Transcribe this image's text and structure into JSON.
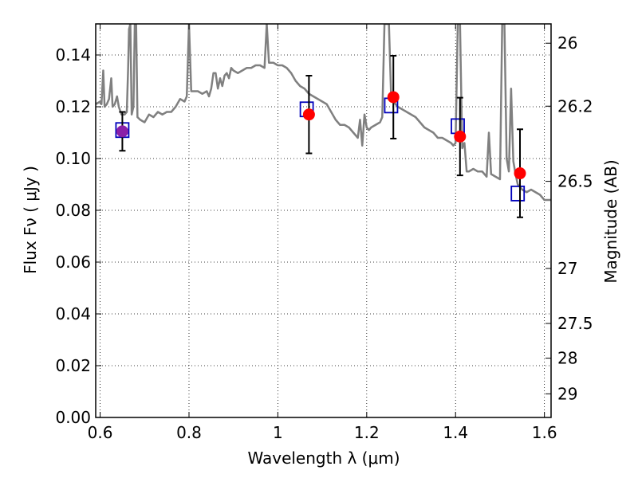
{
  "chart_data": {
    "type": "scatter",
    "title": "",
    "xlabel": "Wavelength  λ (μm)",
    "ylabel": "Flux  Fν  ( μJy )",
    "y2label": "Magnitude (AB)",
    "xlim": [
      0.59,
      1.615
    ],
    "ylim": [
      0.0,
      0.152
    ],
    "x_ticks": [
      0.6,
      0.8,
      1.0,
      1.2,
      1.4,
      1.6
    ],
    "x_tick_labels": [
      "0.6",
      "0.8",
      "1",
      "1.2",
      "1.4",
      "1.6"
    ],
    "y_ticks": [
      0.0,
      0.02,
      0.04,
      0.06,
      0.08,
      0.1,
      0.12,
      0.14
    ],
    "y_tick_labels": [
      "0.00",
      "0.02",
      "0.04",
      "0.06",
      "0.08",
      "0.10",
      "0.12",
      "0.14"
    ],
    "y2_ticks": [
      26,
      26.2,
      26.5,
      27,
      27.5,
      28,
      29
    ],
    "y2_tick_labels": [
      "26",
      "26.2",
      "26.5",
      "27",
      "27.5",
      "28",
      "29"
    ],
    "grid": true,
    "colors": {
      "spectrum": "#808080",
      "observed": "#ff0000",
      "model": "#0000bb",
      "errorbar": "#000000",
      "overlap": "#8a1fa8"
    },
    "series": [
      {
        "kind": "line",
        "points": [
          [
            0.59,
            0.121
          ],
          [
            0.6,
            0.122
          ],
          [
            0.603,
            0.121
          ],
          [
            0.607,
            0.134
          ],
          [
            0.61,
            0.12
          ],
          [
            0.615,
            0.121
          ],
          [
            0.62,
            0.123
          ],
          [
            0.625,
            0.131
          ],
          [
            0.628,
            0.12
          ],
          [
            0.633,
            0.121
          ],
          [
            0.638,
            0.124
          ],
          [
            0.642,
            0.12
          ],
          [
            0.648,
            0.117
          ],
          [
            0.655,
            0.117
          ],
          [
            0.66,
            0.118
          ],
          [
            0.663,
            0.135
          ],
          [
            0.665,
            0.15
          ],
          [
            0.668,
            0.152
          ],
          [
            0.671,
            0.117
          ],
          [
            0.675,
            0.12
          ],
          [
            0.678,
            0.152
          ],
          [
            0.681,
            0.152
          ],
          [
            0.684,
            0.116
          ],
          [
            0.69,
            0.115
          ],
          [
            0.7,
            0.114
          ],
          [
            0.71,
            0.117
          ],
          [
            0.72,
            0.116
          ],
          [
            0.73,
            0.118
          ],
          [
            0.74,
            0.117
          ],
          [
            0.75,
            0.118
          ],
          [
            0.76,
            0.118
          ],
          [
            0.77,
            0.12
          ],
          [
            0.78,
            0.123
          ],
          [
            0.79,
            0.122
          ],
          [
            0.795,
            0.124
          ],
          [
            0.8,
            0.152
          ],
          [
            0.805,
            0.126
          ],
          [
            0.82,
            0.126
          ],
          [
            0.83,
            0.125
          ],
          [
            0.84,
            0.126
          ],
          [
            0.845,
            0.124
          ],
          [
            0.85,
            0.127
          ],
          [
            0.855,
            0.133
          ],
          [
            0.86,
            0.133
          ],
          [
            0.865,
            0.127
          ],
          [
            0.87,
            0.131
          ],
          [
            0.875,
            0.128
          ],
          [
            0.88,
            0.132
          ],
          [
            0.885,
            0.133
          ],
          [
            0.89,
            0.131
          ],
          [
            0.895,
            0.135
          ],
          [
            0.9,
            0.134
          ],
          [
            0.91,
            0.133
          ],
          [
            0.92,
            0.134
          ],
          [
            0.93,
            0.135
          ],
          [
            0.94,
            0.135
          ],
          [
            0.95,
            0.136
          ],
          [
            0.96,
            0.136
          ],
          [
            0.97,
            0.135
          ],
          [
            0.975,
            0.152
          ],
          [
            0.98,
            0.137
          ],
          [
            0.99,
            0.137
          ],
          [
            1.0,
            0.136
          ],
          [
            1.01,
            0.136
          ],
          [
            1.02,
            0.135
          ],
          [
            1.03,
            0.133
          ],
          [
            1.04,
            0.13
          ],
          [
            1.05,
            0.128
          ],
          [
            1.06,
            0.127
          ],
          [
            1.07,
            0.125
          ],
          [
            1.08,
            0.124
          ],
          [
            1.09,
            0.123
          ],
          [
            1.1,
            0.122
          ],
          [
            1.11,
            0.121
          ],
          [
            1.12,
            0.118
          ],
          [
            1.13,
            0.115
          ],
          [
            1.14,
            0.113
          ],
          [
            1.15,
            0.113
          ],
          [
            1.16,
            0.112
          ],
          [
            1.17,
            0.11
          ],
          [
            1.18,
            0.108
          ],
          [
            1.185,
            0.115
          ],
          [
            1.19,
            0.105
          ],
          [
            1.195,
            0.117
          ],
          [
            1.2,
            0.112
          ],
          [
            1.205,
            0.111
          ],
          [
            1.21,
            0.112
          ],
          [
            1.22,
            0.113
          ],
          [
            1.23,
            0.114
          ],
          [
            1.235,
            0.116
          ],
          [
            1.24,
            0.152
          ],
          [
            1.245,
            0.152
          ],
          [
            1.25,
            0.152
          ],
          [
            1.255,
            0.124
          ],
          [
            1.26,
            0.122
          ],
          [
            1.27,
            0.12
          ],
          [
            1.28,
            0.119
          ],
          [
            1.29,
            0.118
          ],
          [
            1.3,
            0.117
          ],
          [
            1.31,
            0.116
          ],
          [
            1.32,
            0.114
          ],
          [
            1.33,
            0.112
          ],
          [
            1.34,
            0.111
          ],
          [
            1.35,
            0.11
          ],
          [
            1.36,
            0.108
          ],
          [
            1.37,
            0.108
          ],
          [
            1.38,
            0.107
          ],
          [
            1.39,
            0.106
          ],
          [
            1.395,
            0.105
          ],
          [
            1.4,
            0.106
          ],
          [
            1.405,
            0.152
          ],
          [
            1.41,
            0.152
          ],
          [
            1.415,
            0.104
          ],
          [
            1.42,
            0.106
          ],
          [
            1.425,
            0.095
          ],
          [
            1.43,
            0.095
          ],
          [
            1.44,
            0.096
          ],
          [
            1.45,
            0.095
          ],
          [
            1.46,
            0.095
          ],
          [
            1.47,
            0.093
          ],
          [
            1.475,
            0.11
          ],
          [
            1.48,
            0.094
          ],
          [
            1.49,
            0.093
          ],
          [
            1.5,
            0.092
          ],
          [
            1.505,
            0.152
          ],
          [
            1.51,
            0.152
          ],
          [
            1.515,
            0.1
          ],
          [
            1.52,
            0.095
          ],
          [
            1.525,
            0.127
          ],
          [
            1.53,
            0.099
          ],
          [
            1.535,
            0.094
          ],
          [
            1.54,
            0.09
          ],
          [
            1.55,
            0.088
          ],
          [
            1.56,
            0.087
          ],
          [
            1.57,
            0.088
          ],
          [
            1.58,
            0.087
          ],
          [
            1.59,
            0.086
          ],
          [
            1.6,
            0.084
          ],
          [
            1.61,
            0.084
          ],
          [
            1.615,
            0.084
          ]
        ]
      },
      {
        "kind": "points-with-errors",
        "points": [
          {
            "x": 0.65,
            "y": 0.1105,
            "yerr": 0.0075
          },
          {
            "x": 1.07,
            "y": 0.117,
            "yerr": 0.015
          },
          {
            "x": 1.26,
            "y": 0.1237,
            "yerr": 0.016
          },
          {
            "x": 1.41,
            "y": 0.1085,
            "yerr": 0.015
          },
          {
            "x": 1.545,
            "y": 0.0943,
            "yerr": 0.017
          }
        ]
      },
      {
        "kind": "markers",
        "points": [
          {
            "x": 0.65,
            "y": 0.111
          },
          {
            "x": 1.065,
            "y": 0.119
          },
          {
            "x": 1.255,
            "y": 0.1205
          },
          {
            "x": 1.405,
            "y": 0.1125
          },
          {
            "x": 1.54,
            "y": 0.0865
          }
        ]
      }
    ]
  }
}
